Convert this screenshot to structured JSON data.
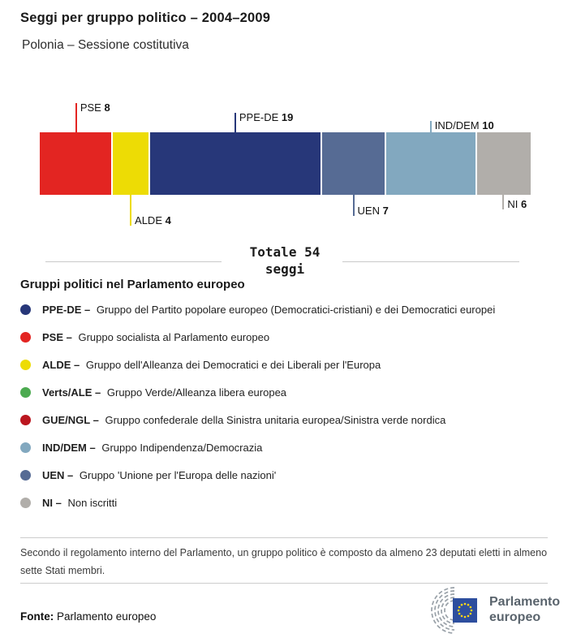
{
  "header": {
    "title": "Seggi per gruppo politico – 2004–2009",
    "subtitle": "Polonia – Sessione costitutiva"
  },
  "chart_data": {
    "type": "bar",
    "variant": "horizontal-stacked-single-bar",
    "title": "Seggi per gruppo politico – 2004–2009",
    "subtitle": "Polonia – Sessione costitutiva",
    "total_seats": 54,
    "total_line1": "Totale 54",
    "total_line2": "seggi",
    "categories": [
      "PSE",
      "ALDE",
      "PPE-DE",
      "UEN",
      "IND/DEM",
      "NI"
    ],
    "values": [
      8,
      4,
      19,
      7,
      10,
      6
    ],
    "groups": [
      {
        "name": "PSE",
        "seats": 8,
        "color": "#e32522",
        "callout_side": "above",
        "callout_len": 36
      },
      {
        "name": "ALDE",
        "seats": 4,
        "color": "#eddc05",
        "callout_side": "below",
        "callout_len": 38
      },
      {
        "name": "PPE-DE",
        "seats": 19,
        "color": "#273779",
        "callout_side": "above",
        "callout_len": 24
      },
      {
        "name": "UEN",
        "seats": 7,
        "color": "#566b94",
        "callout_side": "below",
        "callout_len": 26
      },
      {
        "name": "IND/DEM",
        "seats": 10,
        "color": "#82a8bf",
        "callout_side": "above",
        "callout_len": 14
      },
      {
        "name": "NI",
        "seats": 6,
        "color": "#b1aeaa",
        "callout_side": "below",
        "callout_len": 18
      }
    ]
  },
  "legend": {
    "heading": "Gruppi politici nel Parlamento europeo",
    "items": [
      {
        "abbr": "PPE-DE –",
        "desc": "Gruppo del Partito popolare europeo (Democratici-cristiani) e dei Democratici europei",
        "color": "#273779"
      },
      {
        "abbr": "PSE –",
        "desc": "Gruppo socialista al Parlamento europeo",
        "color": "#e32522"
      },
      {
        "abbr": "ALDE –",
        "desc": "Gruppo dell'Alleanza dei Democratici e dei Liberali per l'Europa",
        "color": "#eddc05"
      },
      {
        "abbr": "Verts/ALE –",
        "desc": "Gruppo Verde/Alleanza libera europea",
        "color": "#4caa50"
      },
      {
        "abbr": "GUE/NGL –",
        "desc": "Gruppo confederale della Sinistra unitaria europea/Sinistra verde nordica",
        "color": "#bb161f"
      },
      {
        "abbr": "IND/DEM –",
        "desc": "Gruppo Indipendenza/Democrazia",
        "color": "#82a8bf"
      },
      {
        "abbr": "UEN –",
        "desc": "Gruppo 'Unione per l'Europa delle nazioni'",
        "color": "#566b94"
      },
      {
        "abbr": "NI –",
        "desc": "Non iscritti",
        "color": "#b1aeaa"
      }
    ]
  },
  "footer": {
    "note": "Secondo il regolamento interno del Parlamento, un gruppo politico è composto da almeno 23 deputati eletti in almeno sette Stati membri.",
    "source_label": "Fonte:",
    "source": "Parlamento europeo",
    "logo": {
      "line1": "Parlamento",
      "line2": "europeo"
    },
    "logo_colors": {
      "flag_blue": "#2d4e9e",
      "star_yellow": "#ffd617",
      "arc_gray": "#99a1a8",
      "text_gray": "#5a646d"
    }
  }
}
